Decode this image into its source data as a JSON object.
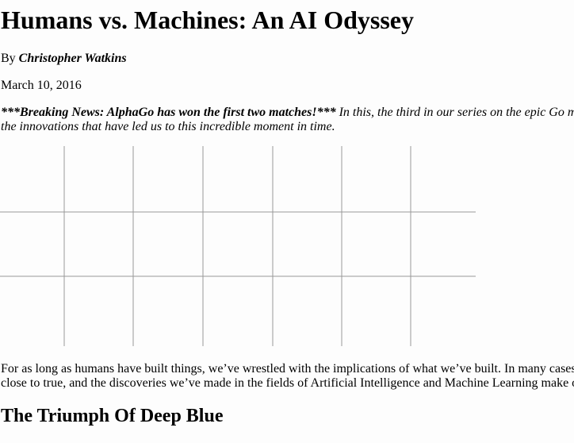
{
  "article": {
    "title": "Humans vs. Machines: An AI Odyssey",
    "byline_prefix": "By ",
    "author": "Christopher Watkins",
    "date": "March 10, 2016",
    "intro": {
      "breaking": "***Breaking News: AlphaGo has won the first two matches!***",
      "line1_rest": " In this, the third in our series on the epic Go m",
      "line2": "the innovations that have led us to this incredible moment in time."
    },
    "body": {
      "line1": "For as long as humans have built things, we’ve wrestled with the implications of what we’ve built. In many cases",
      "line2": "close to true, and the discoveries we’ve made in the fields of Artificial Intelligence and Machine Learning make o"
    },
    "section_heading": "The Triumph Of Deep Blue"
  },
  "board": {
    "line_color": "#999999"
  }
}
